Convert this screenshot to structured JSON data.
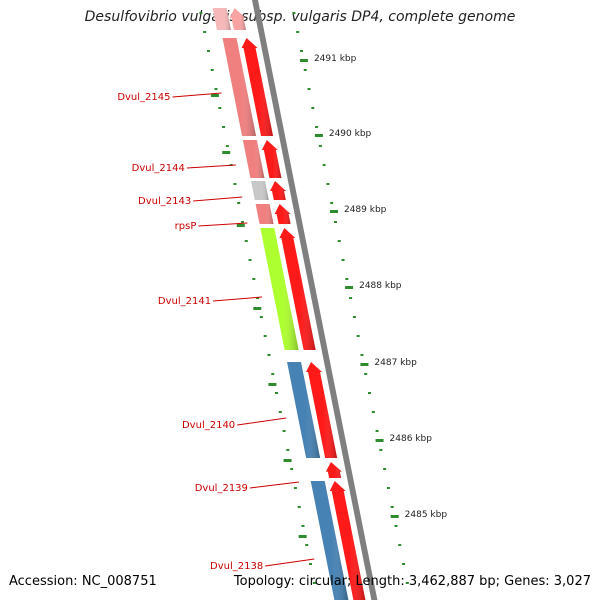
{
  "title": "Desulfovibrio vulgaris subsp. vulgaris DP4, complete genome",
  "footer": {
    "accession": "Accession: NC_008751",
    "summary": "Topology: circular; Length: 3,462,887 bp; Genes: 3,027"
  },
  "colors": {
    "backbone": "#7f7f7f",
    "tick": "#2e8b2e",
    "gene_label": "#cc0000",
    "tick_label": "#222222",
    "cds_arrow": "#ff1a1a"
  },
  "axis": {
    "tick_labels": [
      "2491 kbp",
      "2490 kbp",
      "2489 kbp",
      "2488 kbp",
      "2487 kbp",
      "2486 kbp",
      "2485 kbp"
    ]
  },
  "genes": [
    {
      "label": "Dvul_2145",
      "category_color": "#f08080"
    },
    {
      "label": "Dvul_2144",
      "category_color": "#f08080"
    },
    {
      "label": "Dvul_2143",
      "category_color": "#c8c8c8"
    },
    {
      "label": "rpsP",
      "category_color": "#f08080"
    },
    {
      "label": "Dvul_2141",
      "category_color": "#adff2f"
    },
    {
      "label": "Dvul_2140",
      "category_color": "#4682b4"
    },
    {
      "label": "Dvul_2139",
      "category_color": "#ff1a1a"
    },
    {
      "label": "Dvul_2138",
      "category_color": "#4682b4"
    }
  ]
}
